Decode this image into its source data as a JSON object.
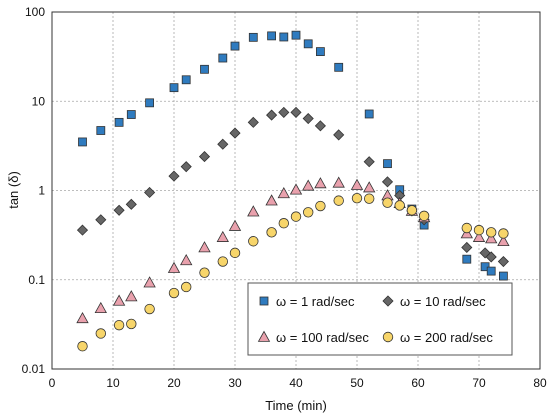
{
  "chart_data": {
    "type": "scatter",
    "xlabel": "Time (min)",
    "ylabel": "tan (δ)",
    "xlim": [
      0,
      80
    ],
    "ylim": [
      0.01,
      100
    ],
    "yscale": "log",
    "grid": true,
    "legend_position": "bottom-right",
    "x_ticks": [
      "0",
      "10",
      "20",
      "30",
      "40",
      "50",
      "60",
      "70",
      "80"
    ],
    "y_ticks": [
      "0.01",
      "0.1",
      "1",
      "10",
      "100"
    ],
    "series": [
      {
        "name": "ω = 1 rad/sec",
        "marker": "square",
        "color": "#2f7bbf",
        "x": [
          5,
          8,
          11,
          13,
          16,
          20,
          22,
          25,
          28,
          30,
          33,
          36,
          38,
          40,
          42,
          44,
          47,
          52,
          55,
          57,
          59,
          61,
          68,
          71,
          72,
          74
        ],
        "y": [
          3.5,
          4.7,
          5.8,
          7.1,
          9.6,
          14.2,
          17.4,
          22.8,
          30.5,
          41.5,
          52,
          54,
          52.5,
          55,
          44,
          36,
          24,
          7.2,
          2.0,
          1.02,
          0.62,
          0.41,
          0.17,
          0.14,
          0.125,
          0.11
        ]
      },
      {
        "name": "ω = 10 rad/sec",
        "marker": "diamond",
        "color": "#666666",
        "x": [
          5,
          8,
          11,
          13,
          16,
          20,
          22,
          25,
          28,
          30,
          33,
          36,
          38,
          40,
          42,
          44,
          47,
          52,
          55,
          57,
          59,
          61,
          68,
          71,
          72,
          74
        ],
        "y": [
          0.36,
          0.47,
          0.6,
          0.7,
          0.95,
          1.45,
          1.85,
          2.4,
          3.3,
          4.4,
          5.8,
          7.0,
          7.5,
          7.5,
          6.4,
          5.3,
          4.2,
          2.1,
          1.25,
          0.88,
          0.59,
          0.47,
          0.23,
          0.2,
          0.18,
          0.16
        ]
      },
      {
        "name": "ω = 100 rad/sec",
        "marker": "triangle",
        "color": "#e9a1ad",
        "x": [
          5,
          8,
          11,
          13,
          16,
          20,
          22,
          25,
          28,
          30,
          33,
          36,
          38,
          40,
          42,
          44,
          47,
          50,
          52,
          55,
          57,
          59,
          61,
          68,
          70,
          72,
          74
        ],
        "y": [
          0.037,
          0.048,
          0.058,
          0.065,
          0.093,
          0.135,
          0.165,
          0.23,
          0.3,
          0.4,
          0.58,
          0.77,
          0.93,
          1.02,
          1.13,
          1.2,
          1.22,
          1.15,
          1.08,
          0.88,
          0.72,
          0.59,
          0.5,
          0.33,
          0.3,
          0.29,
          0.27
        ]
      },
      {
        "name": "ω = 200 rad/sec",
        "marker": "circle",
        "color": "#f7d56a",
        "x": [
          5,
          8,
          11,
          13,
          16,
          20,
          22,
          25,
          28,
          30,
          33,
          36,
          38,
          40,
          42,
          44,
          47,
          50,
          52,
          55,
          57,
          59,
          61,
          68,
          70,
          72,
          74
        ],
        "y": [
          0.018,
          0.025,
          0.031,
          0.032,
          0.047,
          0.071,
          0.083,
          0.12,
          0.16,
          0.2,
          0.27,
          0.34,
          0.43,
          0.51,
          0.57,
          0.67,
          0.77,
          0.82,
          0.81,
          0.73,
          0.68,
          0.6,
          0.52,
          0.38,
          0.36,
          0.34,
          0.33
        ]
      }
    ]
  }
}
